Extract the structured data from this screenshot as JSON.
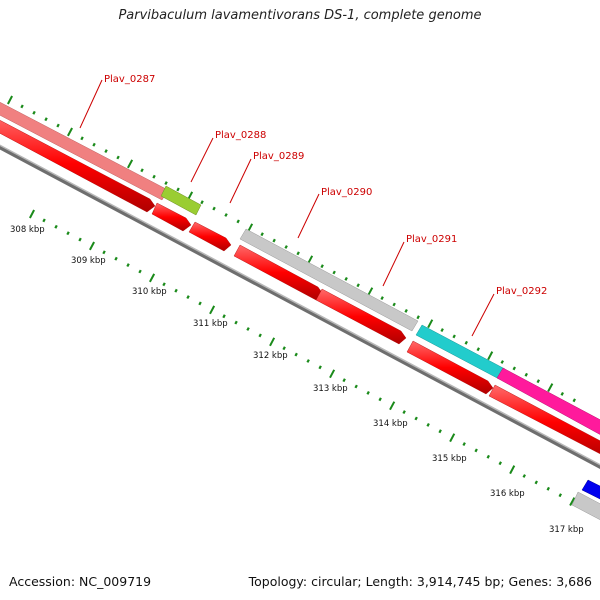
{
  "title": "Parvibaculum lavamentivorans DS-1, complete genome",
  "footer": {
    "accession": "Accession: NC_009719",
    "summary": "Topology: circular; Length: 3,914,745 bp; Genes: 3,686"
  },
  "colors": {
    "forward_cds": "#ff0000",
    "backbone": "#808080",
    "tick": "#1a8a1a",
    "label": "#cc0000"
  },
  "kbp_ticks": [
    "308 kbp",
    "309 kbp",
    "310 kbp",
    "311 kbp",
    "312 kbp",
    "313 kbp",
    "314 kbp",
    "315 kbp",
    "316 kbp",
    "317 kbp"
  ],
  "genes": [
    {
      "name": "Plav_0287",
      "color": "#f08080"
    },
    {
      "name": "Plav_0288",
      "color": "#99cc33"
    },
    {
      "name": "Plav_0289",
      "color": "#ff0000"
    },
    {
      "name": "Plav_0290",
      "color": "#c0c0c0"
    },
    {
      "name": "Plav_0291",
      "color": "#c0c0c0"
    },
    {
      "name": "Plav_0292",
      "color": "#22cccc"
    },
    {
      "name": "",
      "color": "#ff1a9c"
    },
    {
      "name": "",
      "color": "#0000ee"
    }
  ]
}
